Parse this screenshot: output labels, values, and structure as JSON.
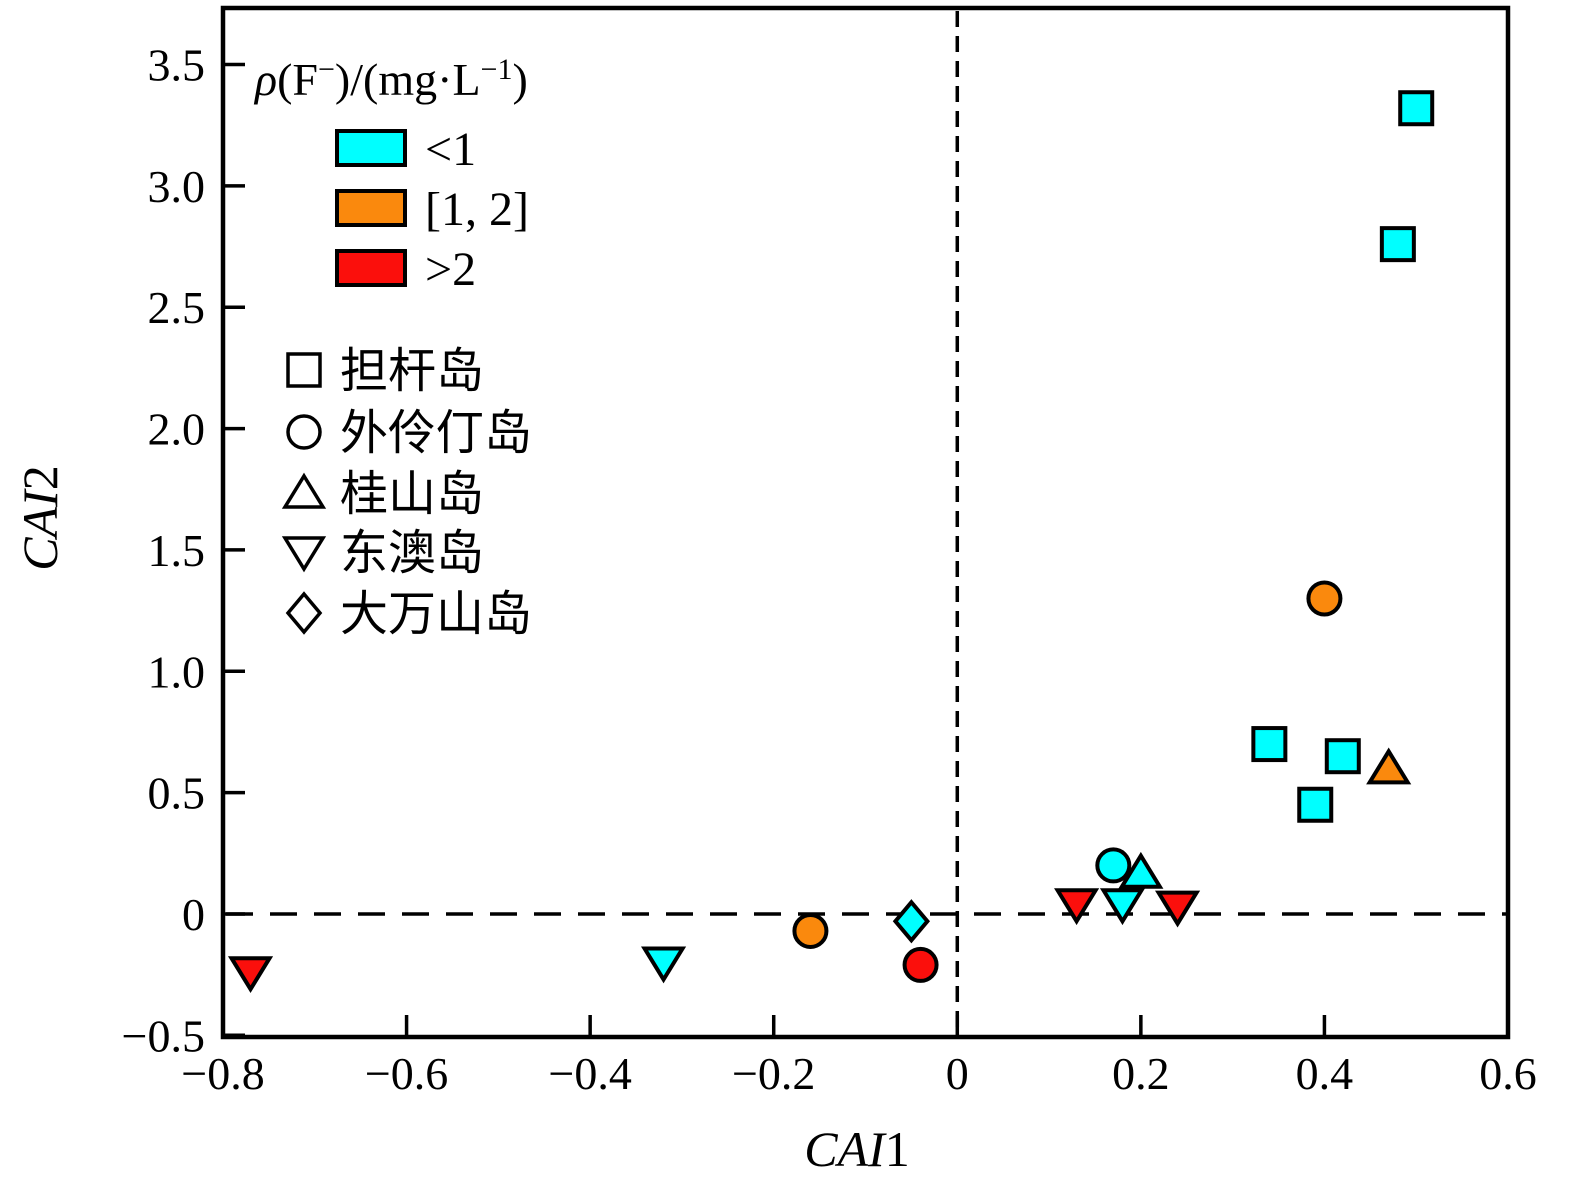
{
  "figure": {
    "background": "#FFFFFF",
    "frame_color": "#000000"
  },
  "chart_data": {
    "type": "scatter",
    "xlabel_italic": "CAI",
    "xlabel_suffix": "1",
    "ylabel_italic": "CAI",
    "ylabel_suffix": "2",
    "x_axis": {
      "min": -0.8,
      "max": 0.6,
      "ticks": [
        -0.8,
        -0.6,
        -0.4,
        -0.2,
        0,
        0.2,
        0.4,
        0.6
      ],
      "tick_labels": [
        "−0.8",
        "−0.6",
        "−0.4",
        "−0.2",
        "0",
        "0.2",
        "0.4",
        "0.6"
      ]
    },
    "y_axis": {
      "min": -0.507,
      "max": 3.733,
      "ticks": [
        3.5,
        3.0,
        2.5,
        2.0,
        1.5,
        1.0,
        0.5,
        0,
        -0.5
      ],
      "tick_labels": [
        "3.5",
        "3.0",
        "2.5",
        "2.0",
        "1.5",
        "1.0",
        "0.5",
        "0",
        "−0.5"
      ]
    },
    "zero_lines": {
      "x": 0,
      "y": 0,
      "style": "dashed"
    },
    "fluoride_legend": {
      "title": "ρ(F−)/(mg·L−1)",
      "title_parts": [
        {
          "t": "ρ",
          "italic": true
        },
        {
          "t": "(F"
        },
        {
          "t": "−",
          "sup": true
        },
        {
          "t": ")/(mg·L",
          "after_sup": true
        },
        {
          "t": "−1",
          "sup": true
        },
        {
          "t": ")",
          "after_sup": true
        }
      ],
      "items": [
        {
          "label": "<1",
          "color": "#00FFFF"
        },
        {
          "label": "[1, 2]",
          "color": "#FA890D"
        },
        {
          "label": ">2",
          "color": "#FB0F0C"
        }
      ]
    },
    "shape_legend": {
      "items": [
        {
          "shape": "square",
          "label": "担杆岛"
        },
        {
          "shape": "circle",
          "label": "外伶仃岛"
        },
        {
          "shape": "triangle-up",
          "label": "桂山岛"
        },
        {
          "shape": "triangle-down",
          "label": "东澳岛"
        },
        {
          "shape": "diamond",
          "label": "大万山岛"
        }
      ]
    },
    "points": [
      {
        "island": "担杆岛",
        "shape": "square",
        "fluoride": "<1",
        "x": 0.5,
        "y": 3.32
      },
      {
        "island": "担杆岛",
        "shape": "square",
        "fluoride": "<1",
        "x": 0.48,
        "y": 2.76
      },
      {
        "island": "外伶仃岛",
        "shape": "circle",
        "fluoride": "[1, 2]",
        "x": 0.4,
        "y": 1.3
      },
      {
        "island": "担杆岛",
        "shape": "square",
        "fluoride": "<1",
        "x": 0.34,
        "y": 0.7
      },
      {
        "island": "担杆岛",
        "shape": "square",
        "fluoride": "<1",
        "x": 0.42,
        "y": 0.65
      },
      {
        "island": "桂山岛",
        "shape": "triangle-up",
        "fluoride": "[1, 2]",
        "x": 0.47,
        "y": 0.6
      },
      {
        "island": "担杆岛",
        "shape": "square",
        "fluoride": "<1",
        "x": 0.39,
        "y": 0.45
      },
      {
        "island": "东澳岛",
        "shape": "triangle-down",
        "fluoride": ">2",
        "x": -0.77,
        "y": -0.24
      },
      {
        "island": "东澳岛",
        "shape": "triangle-down",
        "fluoride": "<1",
        "x": -0.32,
        "y": -0.2
      },
      {
        "island": "外伶仃岛",
        "shape": "circle",
        "fluoride": "[1, 2]",
        "x": -0.16,
        "y": -0.07
      },
      {
        "island": "外伶仃岛",
        "shape": "circle",
        "fluoride": ">2",
        "x": -0.04,
        "y": -0.21
      },
      {
        "island": "大万山岛",
        "shape": "diamond",
        "fluoride": "<1",
        "x": -0.05,
        "y": -0.03
      },
      {
        "island": "东澳岛",
        "shape": "triangle-down",
        "fluoride": ">2",
        "x": 0.13,
        "y": 0.04
      },
      {
        "island": "外伶仃岛",
        "shape": "circle",
        "fluoride": "<1",
        "x": 0.17,
        "y": 0.2
      },
      {
        "island": "桂山岛",
        "shape": "triangle-up",
        "fluoride": "<1",
        "x": 0.2,
        "y": 0.17
      },
      {
        "island": "东澳岛",
        "shape": "triangle-down",
        "fluoride": "<1",
        "x": 0.18,
        "y": 0.04
      },
      {
        "island": "东澳岛",
        "shape": "triangle-down",
        "fluoride": ">2",
        "x": 0.24,
        "y": 0.03
      }
    ]
  }
}
